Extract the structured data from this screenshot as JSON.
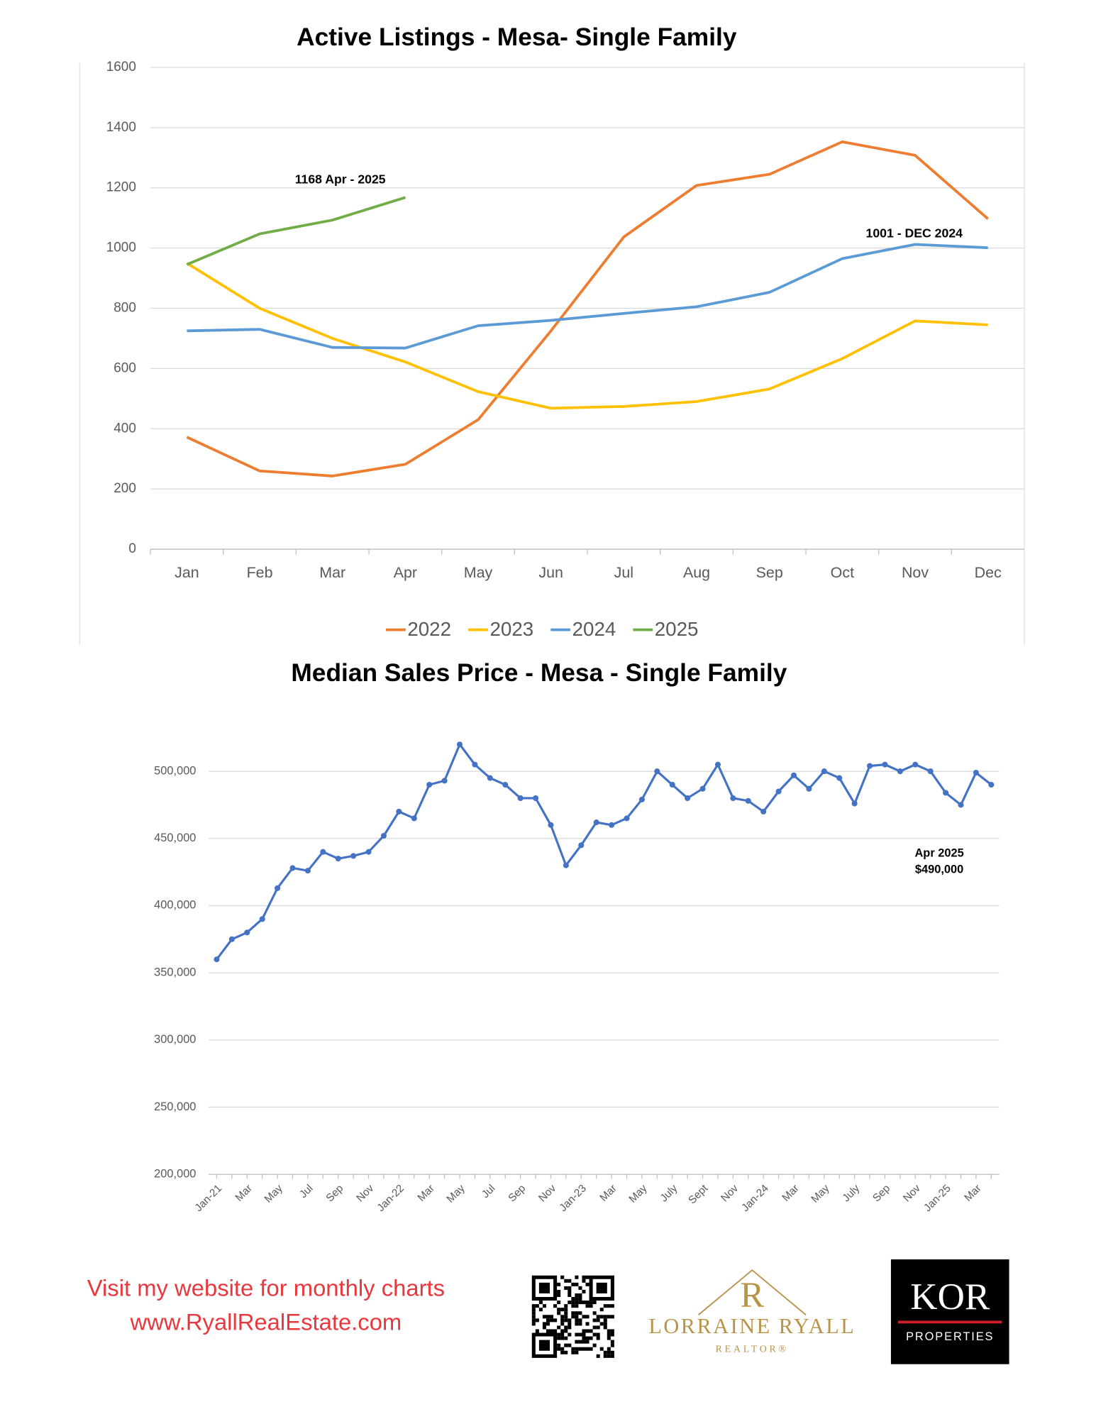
{
  "chart_data": [
    {
      "type": "line",
      "title": "Active Listings - Mesa-  Single Family",
      "categories": [
        "Jan",
        "Feb",
        "Mar",
        "Apr",
        "May",
        "Jun",
        "Jul",
        "Aug",
        "Sep",
        "Oct",
        "Nov",
        "Dec"
      ],
      "series": [
        {
          "name": "2022",
          "color": "#ed7d31",
          "values": [
            372,
            260,
            243,
            282,
            430,
            725,
            1037,
            1208,
            1245,
            1353,
            1308,
            1097
          ]
        },
        {
          "name": "2023",
          "color": "#ffc000",
          "values": [
            950,
            800,
            700,
            622,
            523,
            468,
            474,
            490,
            532,
            633,
            758,
            745
          ]
        },
        {
          "name": "2024",
          "color": "#5b9bd5",
          "values": [
            725,
            730,
            670,
            668,
            742,
            760,
            783,
            805,
            853,
            965,
            1012,
            1001
          ]
        },
        {
          "name": "2025",
          "color": "#70ad47",
          "values": [
            945,
            1047,
            1093,
            1168,
            null,
            null,
            null,
            null,
            null,
            null,
            null,
            null
          ]
        }
      ],
      "ylim": [
        0,
        1600
      ],
      "yticks": [
        0,
        200,
        400,
        600,
        800,
        1000,
        1200,
        1400,
        1600
      ],
      "grid": true,
      "legend": "bottom",
      "annotations": [
        "1168 Apr - 2025",
        "1001 - DEC 2024"
      ]
    },
    {
      "type": "line",
      "title": "Median Sales Price -  Mesa - Single Family",
      "categories": [
        "Jan-21",
        null,
        "Mar",
        null,
        "May",
        null,
        "Jul",
        null,
        "Sep",
        null,
        "Nov",
        null,
        "Jan-22",
        null,
        "Mar",
        null,
        "May",
        null,
        "Jul",
        null,
        "Sep",
        null,
        "Nov",
        null,
        "Jan-23",
        null,
        "Mar",
        null,
        "May",
        null,
        "July",
        null,
        "Sept",
        null,
        "Nov",
        null,
        "Jan-24",
        null,
        "Mar",
        null,
        "May",
        null,
        "July",
        null,
        "Sep",
        null,
        "Nov",
        null,
        "Jan-25",
        null,
        "Mar",
        null
      ],
      "series": [
        {
          "name": "Median Sales Price",
          "color": "#4472c4",
          "values": [
            360000,
            375000,
            380000,
            390000,
            413000,
            428000,
            426000,
            440000,
            435000,
            437000,
            440000,
            452000,
            470000,
            465000,
            490000,
            493000,
            520000,
            505000,
            495000,
            490000,
            480000,
            480000,
            460000,
            430000,
            445000,
            462000,
            460000,
            465000,
            479000,
            500000,
            490000,
            480000,
            487000,
            505000,
            480000,
            478000,
            470000,
            485000,
            497000,
            487000,
            500000,
            495000,
            476000,
            504000,
            505000,
            500000,
            505000,
            500000,
            484000,
            475000,
            499000,
            490000
          ]
        }
      ],
      "ylim": [
        200000,
        530000
      ],
      "yticks": [
        {
          "value": 200000,
          "label": "200,000"
        },
        {
          "value": 250000,
          "label": "250,000"
        },
        {
          "value": 300000,
          "label": "300,000"
        },
        {
          "value": 350000,
          "label": "350,000"
        },
        {
          "value": 400000,
          "label": "400,000"
        },
        {
          "value": 450000,
          "label": "450,000"
        },
        {
          "value": 500000,
          "label": "500,000"
        }
      ],
      "grid": true,
      "annotations": [
        "Apr 2025",
        "$490,000"
      ]
    }
  ],
  "footer": {
    "line1": "Visit my website for monthly charts",
    "line2": "www.RyallRealEstate.com",
    "monogram": "R",
    "brand": "LORRAINE RYALL",
    "brand_sub": "REALTOR®",
    "kor": "KOR",
    "kor_sub": "PROPERTIES"
  }
}
